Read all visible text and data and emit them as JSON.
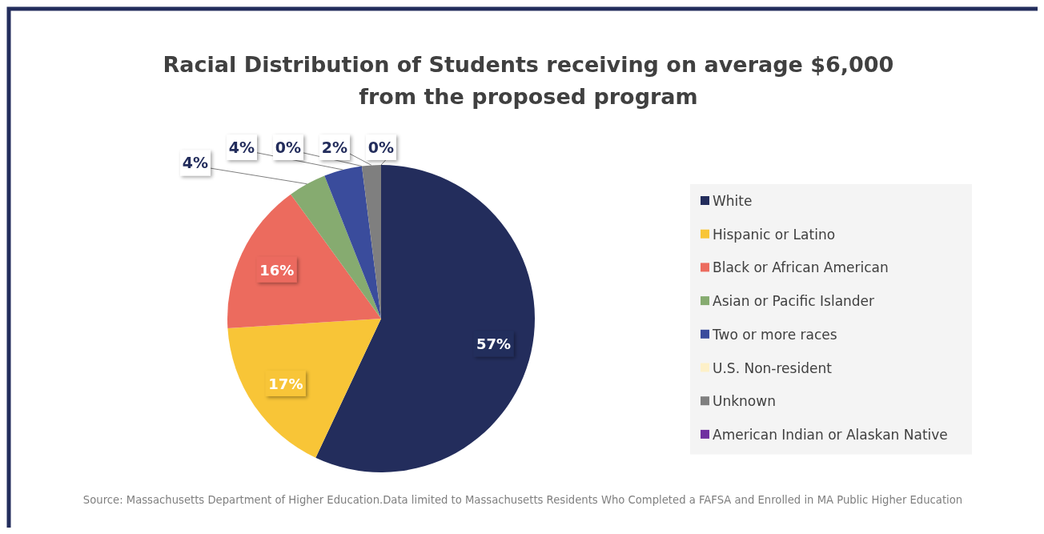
{
  "chart_data": {
    "type": "pie",
    "title": "Racial Distribution of Students receiving on average $6,000 from the proposed program",
    "categories": [
      "White",
      "Hispanic or Latino",
      "Black or African American",
      "Asian or Pacific Islander",
      "Two or more races",
      "U.S. Non-resident",
      "Unknown",
      "American Indian or Alaskan Native"
    ],
    "values": [
      57,
      17,
      16,
      4,
      4,
      0,
      2,
      0
    ],
    "colors": [
      "#232d5c",
      "#f8c537",
      "#ec6b5e",
      "#86ab70",
      "#3a4c9c",
      "#fdf0c8",
      "#7f7f7f",
      "#7030a0"
    ],
    "value_labels": [
      "57%",
      "17%",
      "16%",
      "4%",
      "4%",
      "0%",
      "2%",
      "0%"
    ],
    "legend": "right",
    "annotations": [
      "Source: Massachusetts Department of Higher Education.Data limited  to Massachusetts Residents Who Completed a FAFSA and  Enrolled in  MA Public Higher Education"
    ]
  }
}
